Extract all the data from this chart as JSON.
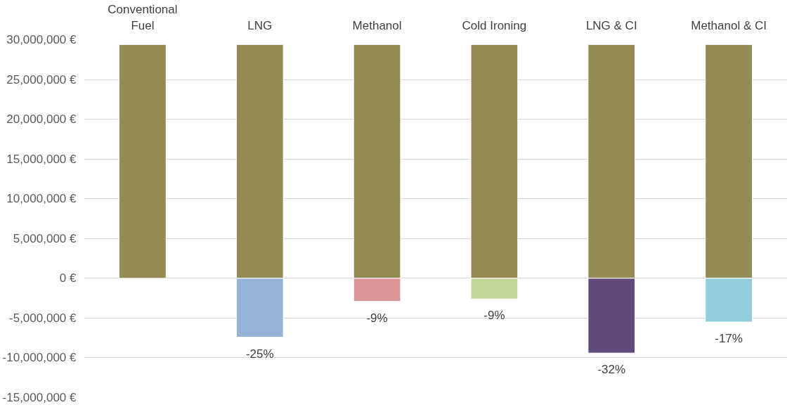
{
  "chart_data": {
    "type": "bar",
    "stacked": true,
    "categories": [
      "Conventional Fuel",
      "LNG",
      "Methanol",
      "Cold Ironing",
      "LNG & CI",
      "Methanol & CI"
    ],
    "series": [
      {
        "color": "#948a54",
        "values": [
          29400000,
          29400000,
          29400000,
          29400000,
          29400000,
          29400000
        ]
      },
      {
        "colors": [
          "#95b3d7",
          "#95b3d7",
          "#da9694",
          "#c4d79b",
          "#604a7b",
          "#92cddc"
        ],
        "values": [
          null,
          -7400000,
          -2900000,
          -2600000,
          -9400000,
          -5500000
        ]
      }
    ],
    "annotations": [
      {
        "text": "-25%",
        "x": "LNG",
        "y": -7400000
      },
      {
        "text": "-9%",
        "x": "Methanol",
        "y": -2900000
      },
      {
        "text": "-9%",
        "x": "Cold Ironing",
        "y": -2600000
      },
      {
        "text": "-32%",
        "x": "LNG & CI",
        "y": -9400000
      },
      {
        "text": "-17%",
        "x": "Methanol & CI",
        "y": -5500000
      }
    ],
    "ylim": [
      -15000000,
      30000000
    ],
    "yticks": [
      {
        "value": 30000000,
        "label": "30,000,000 €"
      },
      {
        "value": 25000000,
        "label": "25,000,000 €"
      },
      {
        "value": 20000000,
        "label": "20,000,000 €"
      },
      {
        "value": 15000000,
        "label": "15,000,000 €"
      },
      {
        "value": 10000000,
        "label": "10,000,000 €"
      },
      {
        "value": 5000000,
        "label": "5,000,000 €"
      },
      {
        "value": 0,
        "label": "0 €"
      },
      {
        "value": -5000000,
        "label": "-5,000,000 €"
      },
      {
        "value": -10000000,
        "label": "-10,000,000 €"
      },
      {
        "value": -15000000,
        "label": "-15,000,000 €"
      }
    ],
    "grid": "y"
  }
}
